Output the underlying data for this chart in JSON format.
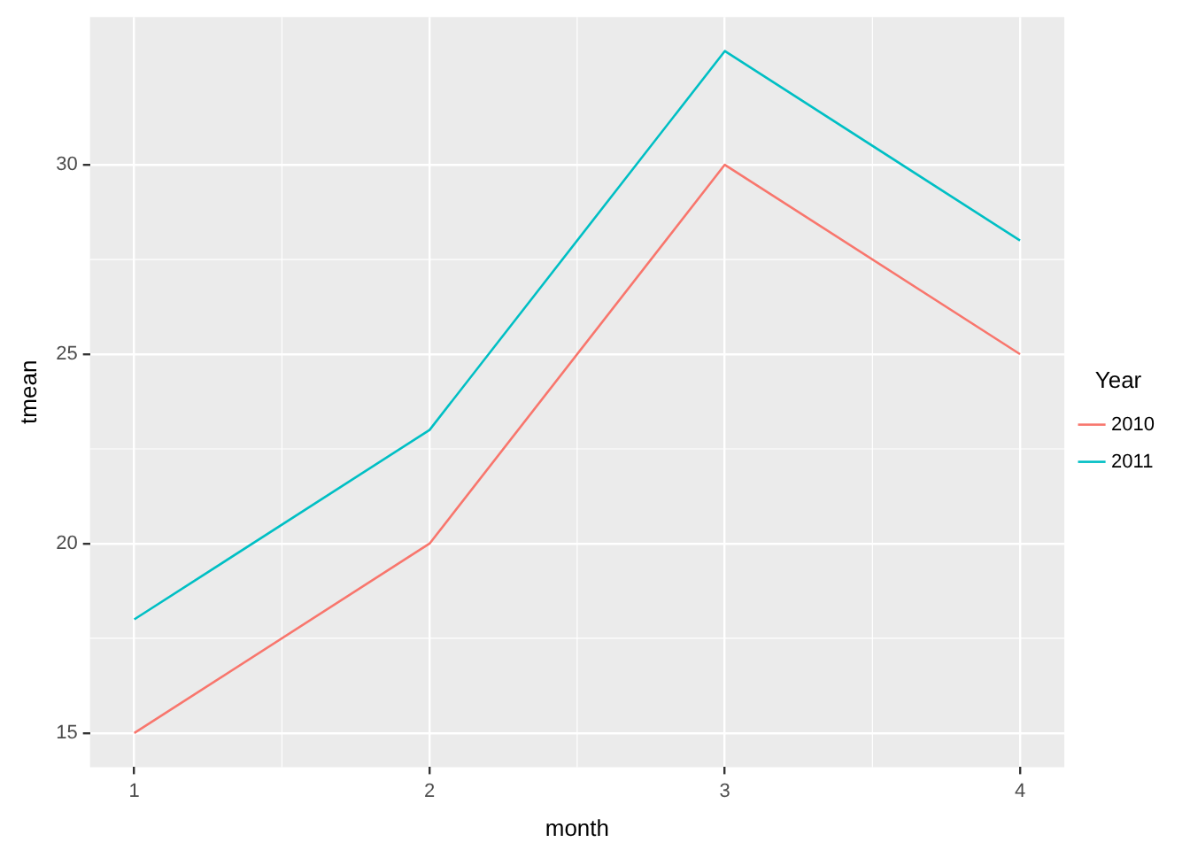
{
  "chart_data": {
    "type": "line",
    "xlabel": "month",
    "ylabel": "tmean",
    "legend_title": "Year",
    "x": [
      1,
      2,
      3,
      4
    ],
    "series": [
      {
        "name": "2010",
        "color": "#f8766d",
        "values": [
          15,
          20,
          30,
          25
        ]
      },
      {
        "name": "2011",
        "color": "#00bfc4",
        "values": [
          18,
          23,
          33,
          28
        ]
      }
    ],
    "xlim": [
      0.85,
      4.15
    ],
    "xticks": [
      1,
      2,
      3,
      4
    ],
    "ylim": [
      14.1,
      33.9
    ],
    "yticks": [
      15,
      20,
      25,
      30
    ],
    "grid": true,
    "legend": "right",
    "marker": "none",
    "line_style": "solid"
  }
}
